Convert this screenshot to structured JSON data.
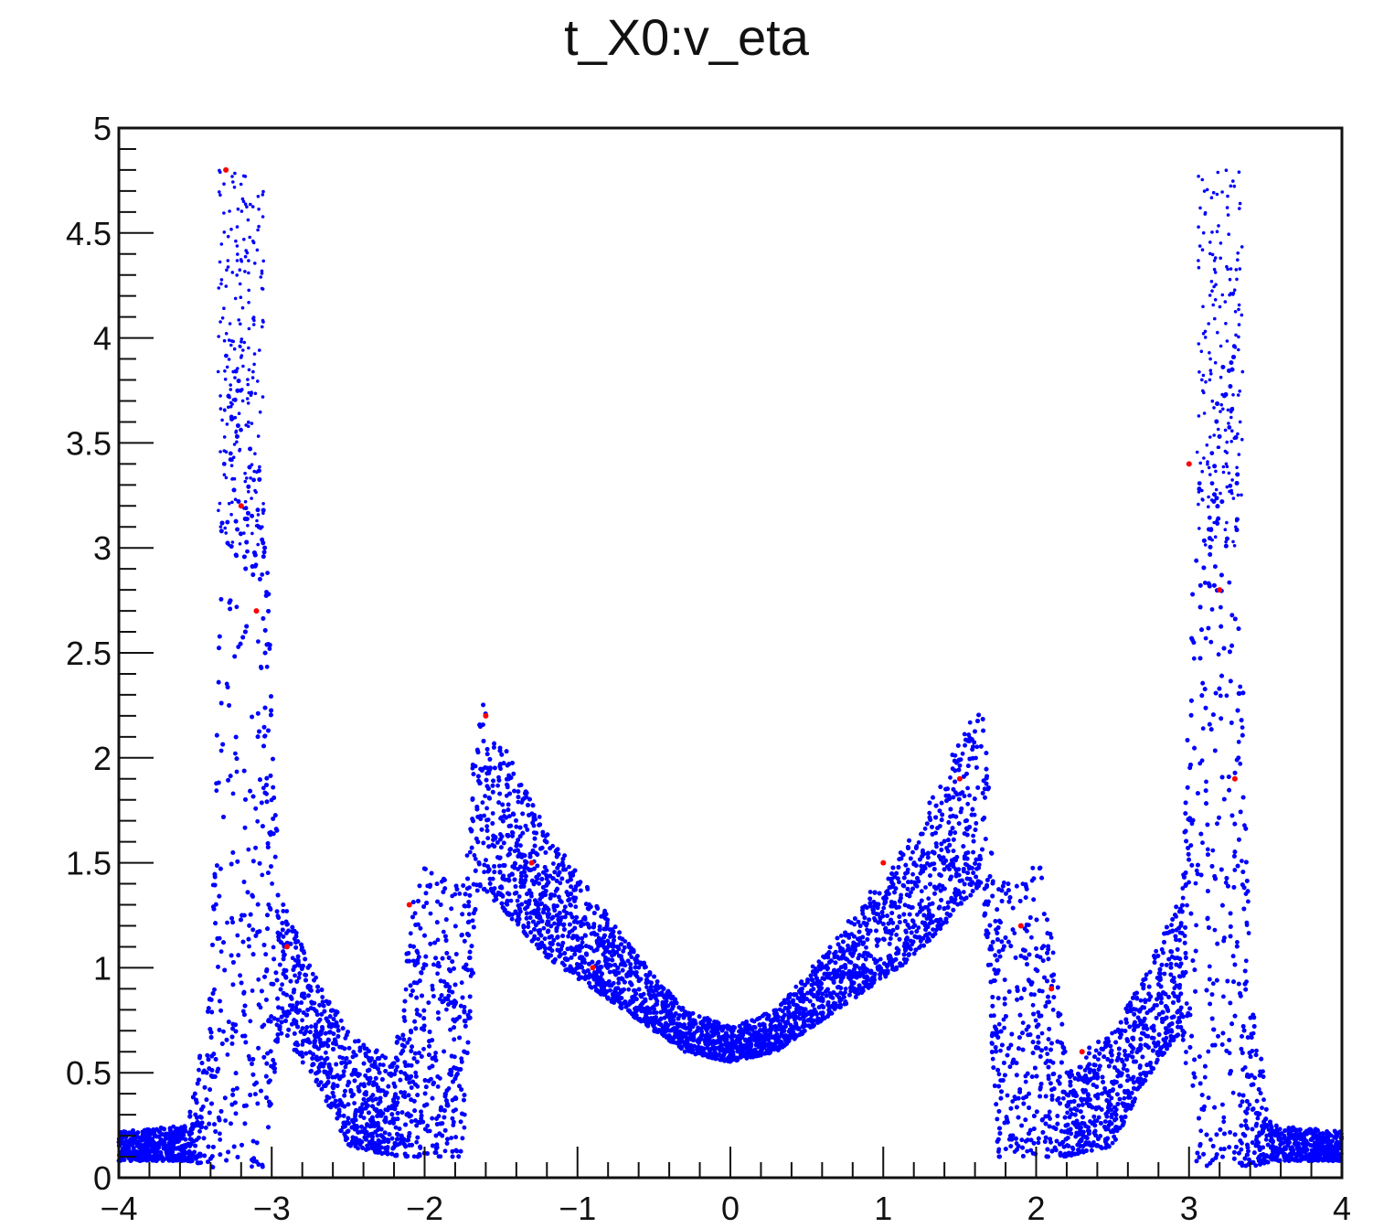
{
  "chart_data": {
    "type": "scatter",
    "title": "t_X0:v_eta",
    "xlabel": "",
    "ylabel": "",
    "xlim": [
      -4,
      4
    ],
    "ylim": [
      0,
      5
    ],
    "x_ticks": [
      "-4",
      "-3",
      "-2",
      "-1",
      "0",
      "1",
      "2",
      "3",
      "4"
    ],
    "x_tick_values": [
      -4,
      -3,
      -2,
      -1,
      0,
      1,
      2,
      3,
      4
    ],
    "y_ticks": [
      "0",
      "0.5",
      "1",
      "1.5",
      "2",
      "2.5",
      "3",
      "3.5",
      "4",
      "4.5",
      "5"
    ],
    "y_tick_values": [
      0,
      0.5,
      1,
      1.5,
      2,
      2.5,
      3,
      3.5,
      4,
      4.5,
      5
    ],
    "grid": false,
    "legend": "none",
    "series": [
      {
        "color": "#0000ff",
        "description_points": [
          {
            "x": -4.0,
            "y_low": 0.08,
            "y_high": 0.22
          },
          {
            "x": -3.55,
            "y_low": 0.08,
            "y_high": 0.25
          },
          {
            "x": -3.4,
            "y_low": 0.05,
            "y_high": 0.9
          },
          {
            "x": -3.3,
            "y_low": 0.05,
            "y_high": 4.0
          },
          {
            "x": -3.15,
            "y_low": 0.05,
            "y_high": 3.8
          },
          {
            "x": -3.05,
            "y_low": 0.05,
            "y_high": 3.4
          },
          {
            "x": -2.95,
            "y_low": 0.7,
            "y_high": 1.35
          },
          {
            "x": -2.7,
            "y_low": 0.45,
            "y_high": 0.95
          },
          {
            "x": -2.5,
            "y_low": 0.15,
            "y_high": 0.7
          },
          {
            "x": -2.2,
            "y_low": 0.1,
            "y_high": 0.55
          },
          {
            "x": -2.05,
            "y_low": 0.1,
            "y_high": 1.5
          },
          {
            "x": -1.75,
            "y_low": 0.1,
            "y_high": 1.4
          },
          {
            "x": -1.65,
            "y_low": 1.4,
            "y_high": 2.3
          },
          {
            "x": -1.2,
            "y_low": 1.05,
            "y_high": 1.65
          },
          {
            "x": -0.7,
            "y_low": 0.8,
            "y_high": 1.15
          },
          {
            "x": -0.3,
            "y_low": 0.6,
            "y_high": 0.8
          },
          {
            "x": 0.0,
            "y_low": 0.55,
            "y_high": 0.72
          },
          {
            "x": 0.3,
            "y_low": 0.6,
            "y_high": 0.8
          },
          {
            "x": 0.7,
            "y_low": 0.8,
            "y_high": 1.15
          },
          {
            "x": 1.2,
            "y_low": 1.05,
            "y_high": 1.65
          },
          {
            "x": 1.65,
            "y_low": 1.4,
            "y_high": 2.3
          },
          {
            "x": 1.75,
            "y_low": 0.1,
            "y_high": 1.4
          },
          {
            "x": 2.05,
            "y_low": 0.1,
            "y_high": 1.5
          },
          {
            "x": 2.2,
            "y_low": 0.1,
            "y_high": 0.55
          },
          {
            "x": 2.5,
            "y_low": 0.15,
            "y_high": 0.7
          },
          {
            "x": 2.7,
            "y_low": 0.45,
            "y_high": 0.95
          },
          {
            "x": 2.95,
            "y_low": 0.7,
            "y_high": 1.35
          },
          {
            "x": 3.05,
            "y_low": 0.05,
            "y_high": 3.4
          },
          {
            "x": 3.15,
            "y_low": 0.05,
            "y_high": 3.8
          },
          {
            "x": 3.3,
            "y_low": 0.05,
            "y_high": 4.0
          },
          {
            "x": 3.4,
            "y_low": 0.05,
            "y_high": 0.9
          },
          {
            "x": 3.55,
            "y_low": 0.08,
            "y_high": 0.25
          },
          {
            "x": 4.0,
            "y_low": 0.08,
            "y_high": 0.22
          }
        ]
      },
      {
        "color": "#ff0000",
        "points": [
          {
            "x": -3.3,
            "y": 4.8
          },
          {
            "x": -3.2,
            "y": 3.2
          },
          {
            "x": -3.1,
            "y": 2.7
          },
          {
            "x": -2.9,
            "y": 1.1
          },
          {
            "x": -2.1,
            "y": 1.3
          },
          {
            "x": -1.6,
            "y": 2.2
          },
          {
            "x": -1.3,
            "y": 1.5
          },
          {
            "x": -0.9,
            "y": 1.0
          },
          {
            "x": 1.0,
            "y": 1.5
          },
          {
            "x": 1.5,
            "y": 1.9
          },
          {
            "x": 1.9,
            "y": 1.2
          },
          {
            "x": 2.1,
            "y": 0.9
          },
          {
            "x": 2.3,
            "y": 0.6
          },
          {
            "x": 3.0,
            "y": 3.4
          },
          {
            "x": 3.2,
            "y": 2.8
          },
          {
            "x": 3.3,
            "y": 1.9
          }
        ]
      }
    ]
  }
}
